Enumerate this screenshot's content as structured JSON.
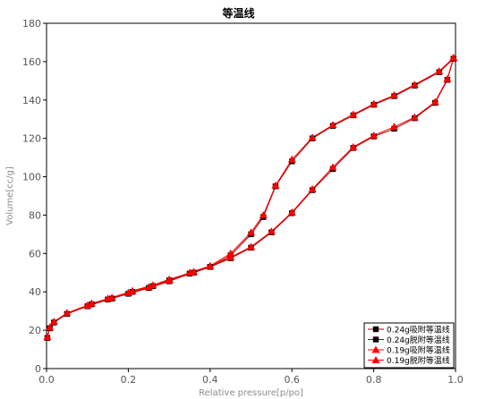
{
  "chart_data": {
    "type": "line",
    "title": "等温线",
    "xlabel": "Relative pressure[p/po]",
    "ylabel": "Volume[cc/g]",
    "xlim": [
      0,
      1.0
    ],
    "ylim": [
      0,
      180
    ],
    "xticks": [
      "0.0",
      "0.2",
      "0.4",
      "0.6",
      "0.8",
      "1.0"
    ],
    "yticks": [
      "0",
      "20",
      "40",
      "60",
      "80",
      "100",
      "120",
      "140",
      "160",
      "180"
    ],
    "grid": false,
    "legend_position": "bottom-right",
    "series": [
      {
        "name": "0.24g吸附等温线",
        "marker": "square",
        "marker_color": "#000000",
        "line_color": "#a00000",
        "x": [
          0.002,
          0.008,
          0.018,
          0.05,
          0.1,
          0.15,
          0.2,
          0.25,
          0.3,
          0.35,
          0.4,
          0.45,
          0.5,
          0.55,
          0.6,
          0.65,
          0.7,
          0.75,
          0.8,
          0.85,
          0.9,
          0.95,
          0.98,
          0.995
        ],
        "y": [
          16,
          21,
          24,
          28.5,
          32.5,
          36,
          39,
          42,
          45.5,
          49.5,
          53,
          57.5,
          63,
          71,
          81,
          93,
          104,
          115,
          121,
          125,
          130.5,
          138.5,
          150.5,
          161.5
        ]
      },
      {
        "name": "0.24g脱附等温线",
        "marker": "square",
        "marker_color": "#000000",
        "line_color": "#a00000",
        "x": [
          0.995,
          0.96,
          0.9,
          0.85,
          0.8,
          0.75,
          0.7,
          0.65,
          0.6,
          0.56,
          0.53,
          0.5,
          0.45,
          0.4,
          0.36,
          0.3,
          0.26,
          0.21,
          0.16,
          0.11
        ],
        "y": [
          161.5,
          154.5,
          147.5,
          142,
          137.5,
          132,
          126.5,
          120,
          108,
          95,
          79,
          70,
          59,
          53,
          50,
          46,
          43,
          40,
          36.5,
          33.5
        ]
      },
      {
        "name": "0.19g吸附等温线",
        "marker": "triangle",
        "marker_color": "#ff0000",
        "line_color": "#ff0000",
        "x": [
          0.002,
          0.008,
          0.018,
          0.05,
          0.1,
          0.15,
          0.2,
          0.25,
          0.3,
          0.35,
          0.4,
          0.45,
          0.5,
          0.55,
          0.6,
          0.65,
          0.7,
          0.75,
          0.8,
          0.85,
          0.9,
          0.95,
          0.98,
          0.995
        ],
        "y": [
          16.5,
          21.5,
          24.5,
          29,
          33,
          36.5,
          39.5,
          42.5,
          46,
          50,
          53.5,
          58,
          63.5,
          71.5,
          81.5,
          93.5,
          105,
          115.5,
          121.5,
          126,
          131,
          139,
          151,
          162
        ]
      },
      {
        "name": "0.19g脱附等温线",
        "marker": "triangle",
        "marker_color": "#ff0000",
        "line_color": "#ff0000",
        "x": [
          0.995,
          0.96,
          0.9,
          0.85,
          0.8,
          0.75,
          0.7,
          0.65,
          0.6,
          0.56,
          0.53,
          0.5,
          0.45,
          0.4,
          0.36,
          0.3,
          0.26,
          0.21,
          0.16,
          0.11
        ],
        "y": [
          162,
          155,
          148,
          142.5,
          138,
          132.5,
          127,
          120.5,
          109,
          95.5,
          80,
          71,
          60,
          53.5,
          50.5,
          46.5,
          43.5,
          40.5,
          37,
          34
        ]
      }
    ]
  }
}
